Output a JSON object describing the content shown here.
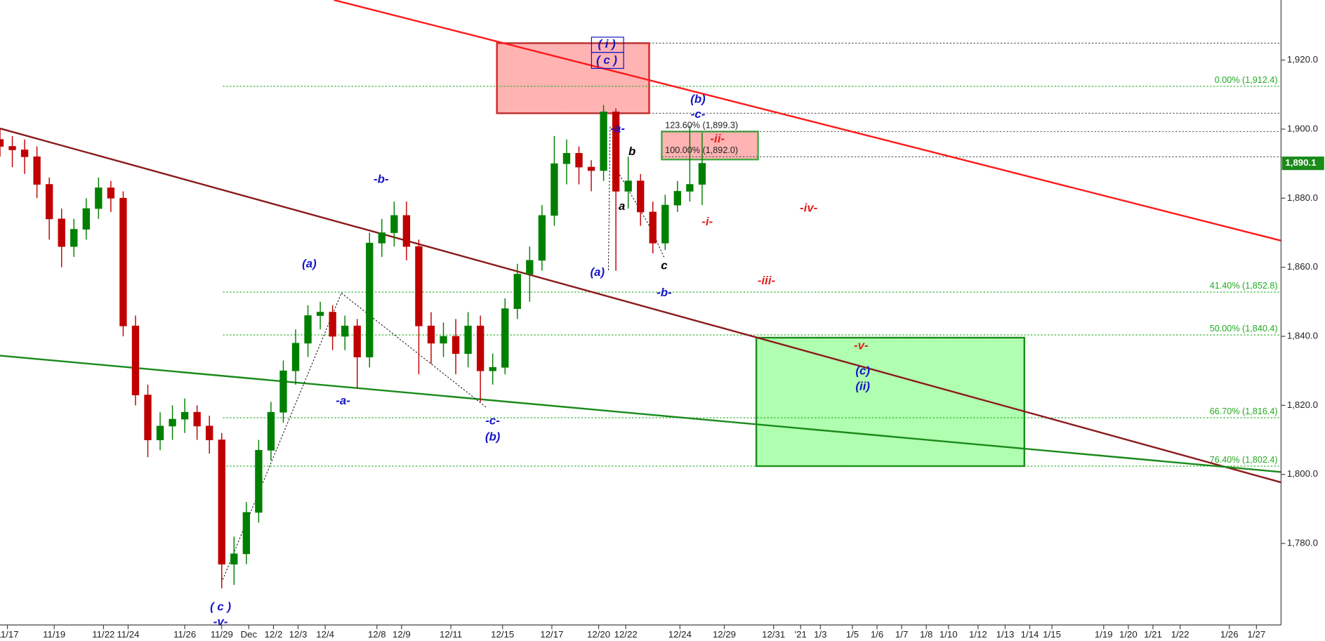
{
  "chart_data": {
    "type": "candlestick",
    "xlim": [
      0,
      52
    ],
    "ylim": [
      1756.4,
      1937.4
    ],
    "xticks": [
      {
        "value": 0.3,
        "label": "11/17"
      },
      {
        "value": 2.2,
        "label": "11/19"
      },
      {
        "value": 4.2,
        "label": "11/22"
      },
      {
        "value": 5.2,
        "label": "11/24"
      },
      {
        "value": 7.5,
        "label": "11/26"
      },
      {
        "value": 9.0,
        "label": "11/29"
      },
      {
        "value": 10.1,
        "label": "Dec"
      },
      {
        "value": 11.1,
        "label": "12/2"
      },
      {
        "value": 12.1,
        "label": "12/3"
      },
      {
        "value": 13.2,
        "label": "12/4"
      },
      {
        "value": 15.3,
        "label": "12/8"
      },
      {
        "value": 16.3,
        "label": "12/9"
      },
      {
        "value": 18.3,
        "label": "12/11"
      },
      {
        "value": 20.4,
        "label": "12/15"
      },
      {
        "value": 22.4,
        "label": "12/17"
      },
      {
        "value": 24.3,
        "label": "12/20"
      },
      {
        "value": 25.4,
        "label": "12/22"
      },
      {
        "value": 27.6,
        "label": "12/24"
      },
      {
        "value": 29.4,
        "label": "12/29"
      },
      {
        "value": 31.4,
        "label": "12/31"
      },
      {
        "value": 32.5,
        "label": "'21"
      },
      {
        "value": 33.3,
        "label": "1/3"
      },
      {
        "value": 34.6,
        "label": "1/5"
      },
      {
        "value": 35.6,
        "label": "1/6"
      },
      {
        "value": 36.6,
        "label": "1/7"
      },
      {
        "value": 37.6,
        "label": "1/8"
      },
      {
        "value": 38.5,
        "label": "1/10"
      },
      {
        "value": 39.7,
        "label": "1/12"
      },
      {
        "value": 40.8,
        "label": "1/13"
      },
      {
        "value": 41.8,
        "label": "1/14"
      },
      {
        "value": 42.7,
        "label": "1/15"
      },
      {
        "value": 44.8,
        "label": "1/19"
      },
      {
        "value": 45.8,
        "label": "1/20"
      },
      {
        "value": 46.8,
        "label": "1/21"
      },
      {
        "value": 47.9,
        "label": "1/22"
      },
      {
        "value": 49.9,
        "label": "1/26"
      },
      {
        "value": 51.0,
        "label": "1/27"
      }
    ],
    "yticks": [
      {
        "value": 1920,
        "label": "1,920.0"
      },
      {
        "value": 1900,
        "label": "1,900.0"
      },
      {
        "value": 1880,
        "label": "1,880.0"
      },
      {
        "value": 1860,
        "label": "1,860.0"
      },
      {
        "value": 1840,
        "label": "1,840.0"
      },
      {
        "value": 1820,
        "label": "1,820.0"
      },
      {
        "value": 1800,
        "label": "1,800.0"
      },
      {
        "value": 1780,
        "label": "1,780.0"
      }
    ],
    "up_color": "#008000",
    "down_color": "#c00000",
    "x": [
      0,
      0.5,
      1,
      1.5,
      2,
      2.5,
      3,
      3.5,
      4,
      4.5,
      5,
      5.5,
      6,
      6.5,
      7,
      7.5,
      8,
      8.5,
      9,
      9.5,
      10,
      10.5,
      11,
      11.5,
      12,
      12.5,
      13,
      13.5,
      14,
      14.5,
      15,
      15.5,
      16,
      16.5,
      17,
      17.5,
      18,
      18.5,
      19,
      19.5,
      20,
      20.5,
      21,
      21.5,
      22,
      22.5,
      23,
      23.5,
      24,
      24.5,
      25,
      25.5,
      26,
      26.5,
      27,
      27.5,
      28,
      28.5
    ],
    "open": [
      1897,
      1895,
      1894,
      1892,
      1884,
      1874,
      1866,
      1871,
      1877,
      1883,
      1880,
      1843,
      1823,
      1810,
      1814,
      1816,
      1818,
      1814,
      1810,
      1774,
      1777,
      1789,
      1807,
      1818,
      1830,
      1838,
      1846,
      1847,
      1840,
      1843,
      1834,
      1867,
      1870,
      1875,
      1866,
      1843,
      1838,
      1840,
      1835,
      1843,
      1830,
      1831,
      1848,
      1858,
      1862,
      1875,
      1890,
      1893,
      1889,
      1888,
      1905,
      1882,
      1885,
      1876,
      1867,
      1878,
      1882,
      1884
    ],
    "high": [
      1900,
      1898,
      1897,
      1895,
      1886,
      1877,
      1874,
      1880,
      1886,
      1885,
      1882,
      1846,
      1826,
      1818,
      1820,
      1822,
      1820,
      1817,
      1812,
      1782,
      1792,
      1810,
      1821,
      1833,
      1842,
      1849,
      1850,
      1849,
      1846,
      1845,
      1870,
      1874,
      1879,
      1879,
      1868,
      1847,
      1844,
      1845,
      1847,
      1846,
      1835,
      1851,
      1861,
      1866,
      1878,
      1898,
      1897,
      1895,
      1891,
      1907,
      1906,
      1892,
      1887,
      1879,
      1881,
      1885,
      1901,
      1899
    ],
    "low": [
      1892,
      1889,
      1887,
      1880,
      1868,
      1860,
      1863,
      1868,
      1874,
      1876,
      1840,
      1820,
      1805,
      1807,
      1810,
      1812,
      1810,
      1806,
      1767,
      1768,
      1774,
      1786,
      1804,
      1815,
      1826,
      1834,
      1842,
      1836,
      1836,
      1825,
      1831,
      1863,
      1866,
      1862,
      1829,
      1832,
      1834,
      1829,
      1831,
      1821,
      1826,
      1829,
      1845,
      1850,
      1859,
      1872,
      1884,
      1884,
      1882,
      1885,
      1859,
      1877,
      1872,
      1864,
      1865,
      1876,
      1879,
      1878
    ],
    "close": [
      1895,
      1894,
      1892,
      1884,
      1874,
      1866,
      1871,
      1877,
      1883,
      1880,
      1843,
      1823,
      1810,
      1814,
      1816,
      1818,
      1814,
      1810,
      1774,
      1777,
      1789,
      1807,
      1818,
      1830,
      1838,
      1846,
      1847,
      1840,
      1843,
      1834,
      1867,
      1870,
      1875,
      1866,
      1843,
      1838,
      1840,
      1835,
      1843,
      1830,
      1831,
      1848,
      1858,
      1862,
      1875,
      1890,
      1893,
      1889,
      1888,
      1905,
      1882,
      1885,
      1876,
      1867,
      1878,
      1882,
      1884,
      1890.1
    ],
    "zones": [
      {
        "x": [
          20.17,
          26.35
        ],
        "y": [
          1904.6,
          1924.9
        ],
        "color": "#ffb3b3",
        "border": "#dd2222"
      },
      {
        "x": [
          26.86,
          30.77
        ],
        "y": [
          1891.2,
          1899.3
        ],
        "color": "#ffb3b3",
        "border": "#44aa44"
      },
      {
        "x": [
          30.7,
          41.58
        ],
        "y": [
          1802.4,
          1839.6
        ],
        "color": "#b0ffb0",
        "border": "#1a8a1a"
      }
    ],
    "levels": [
      {
        "value": 1924.9,
        "x": [
          20.17,
          52
        ],
        "color": "#555555"
      },
      {
        "value": 1904.6,
        "x": [
          20.17,
          52
        ],
        "color": "#555555"
      },
      {
        "value": 1899.3,
        "label": "123.60% (1,899.3)",
        "x": [
          26.86,
          52
        ],
        "color": "#555555"
      },
      {
        "value": 1892.0,
        "label": "100.00% (1,892.0)",
        "x": [
          26.86,
          52
        ],
        "color": "#555555"
      },
      {
        "value": 1912.4,
        "label": "0.00% (1,912.4)",
        "x": [
          9.05,
          52
        ],
        "color": "#22aa22"
      },
      {
        "value": 1852.8,
        "label": "41.40% (1,852.8)",
        "x": [
          9.05,
          52
        ],
        "color": "#22aa22"
      },
      {
        "value": 1840.4,
        "label": "50.00% (1,840.4)",
        "x": [
          9.05,
          52
        ],
        "color": "#22aa22"
      },
      {
        "value": 1816.4,
        "label": "66.70% (1,816.4)",
        "x": [
          9.05,
          52
        ],
        "color": "#22aa22"
      },
      {
        "value": 1802.4,
        "label": "76.40% (1,802.4)",
        "x": [
          9.05,
          52
        ],
        "color": "#22aa22"
      }
    ],
    "trendlines": [
      {
        "x": [
          13.55,
          52
        ],
        "y": [
          1937.4,
          1867.7
        ],
        "color": "#ff1a1a"
      },
      {
        "x": [
          0,
          52
        ],
        "y": [
          1900.2,
          1797.7
        ],
        "color": "#8b1a1a"
      },
      {
        "x": [
          0,
          52
        ],
        "y": [
          1834.4,
          1800.7
        ],
        "color": "#1a8a1a"
      }
    ],
    "last_price": {
      "value": 1890.1,
      "label": "1,890.1",
      "color": "#1a8a1a"
    },
    "annotations": [
      {
        "text": "(a)",
        "color": "#1515c8"
      },
      {
        "text": "-b-",
        "color": "#1515c8"
      },
      {
        "text": "-a-",
        "color": "#1515c8"
      },
      {
        "text": "-c-",
        "color": "#1515c8"
      },
      {
        "text": "(b)",
        "color": "#1515c8"
      },
      {
        "text": "( c )",
        "color": "#1515c8"
      },
      {
        "text": "-v-",
        "color": "#1515c8"
      },
      {
        "text": "(a)",
        "color": "#1515c8"
      },
      {
        "text": "-a-",
        "color": "#1515c8"
      },
      {
        "text": "a",
        "color": "#000000"
      },
      {
        "text": "b",
        "color": "#000000"
      },
      {
        "text": "c",
        "color": "#000000"
      },
      {
        "text": "-b-",
        "color": "#1515c8"
      },
      {
        "text": "(b)",
        "color": "#1515c8"
      },
      {
        "text": "-c-",
        "color": "#1515c8"
      },
      {
        "text": "-ii-",
        "color": "#e02020"
      },
      {
        "text": "-i-",
        "color": "#e02020"
      },
      {
        "text": "-iv-",
        "color": "#e02020"
      },
      {
        "text": "-iii-",
        "color": "#e02020"
      },
      {
        "text": "-v-",
        "color": "#e02020"
      },
      {
        "text": "(c)",
        "color": "#1515c8"
      },
      {
        "text": "(ii)",
        "color": "#1515c8"
      },
      {
        "text": "( i )",
        "color": "#1515c8"
      },
      {
        "text": "( c )",
        "color": "#1515c8"
      }
    ]
  }
}
